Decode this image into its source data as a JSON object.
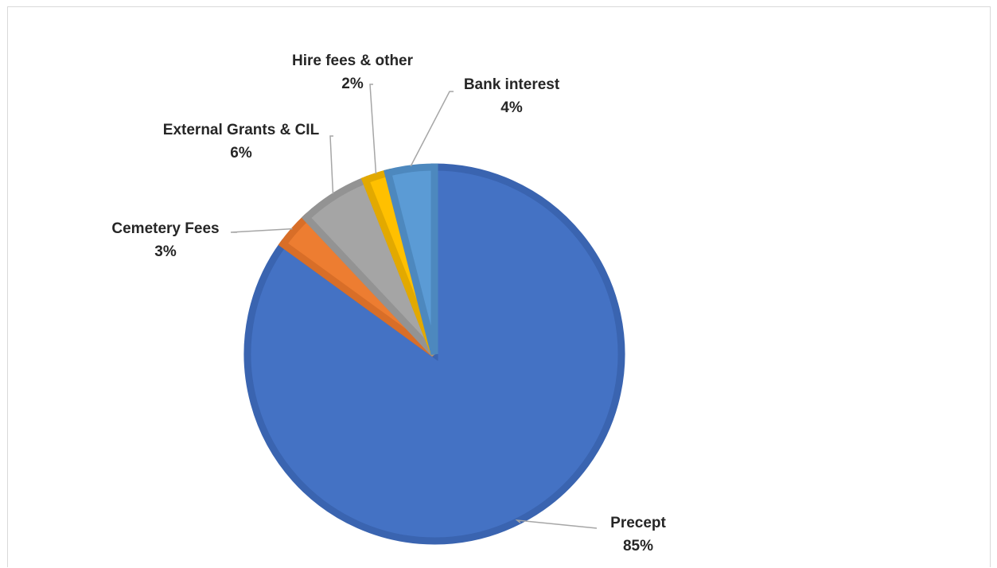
{
  "chart_data": {
    "type": "pie",
    "title": "",
    "start_angle_deg": 0,
    "direction": "clockwise",
    "slices": [
      {
        "label": "Precept",
        "value": 85,
        "value_label": "85%",
        "color": "#4472C4",
        "edge_color": "#3A64B0"
      },
      {
        "label": "Cemetery Fees",
        "value": 3,
        "value_label": "3%",
        "color": "#ED7D31",
        "edge_color": "#D86E28"
      },
      {
        "label": "External Grants & CIL",
        "value": 6,
        "value_label": "6%",
        "color": "#A5A5A5",
        "edge_color": "#939393"
      },
      {
        "label": "Hire fees & other",
        "value": 2,
        "value_label": "2%",
        "color": "#FFC000",
        "edge_color": "#E2A900"
      },
      {
        "label": "Bank interest",
        "value": 4,
        "value_label": "4%",
        "color": "#5B9BD5",
        "edge_color": "#4D88BE"
      }
    ],
    "leader_line_color": "#A6A6A6"
  }
}
